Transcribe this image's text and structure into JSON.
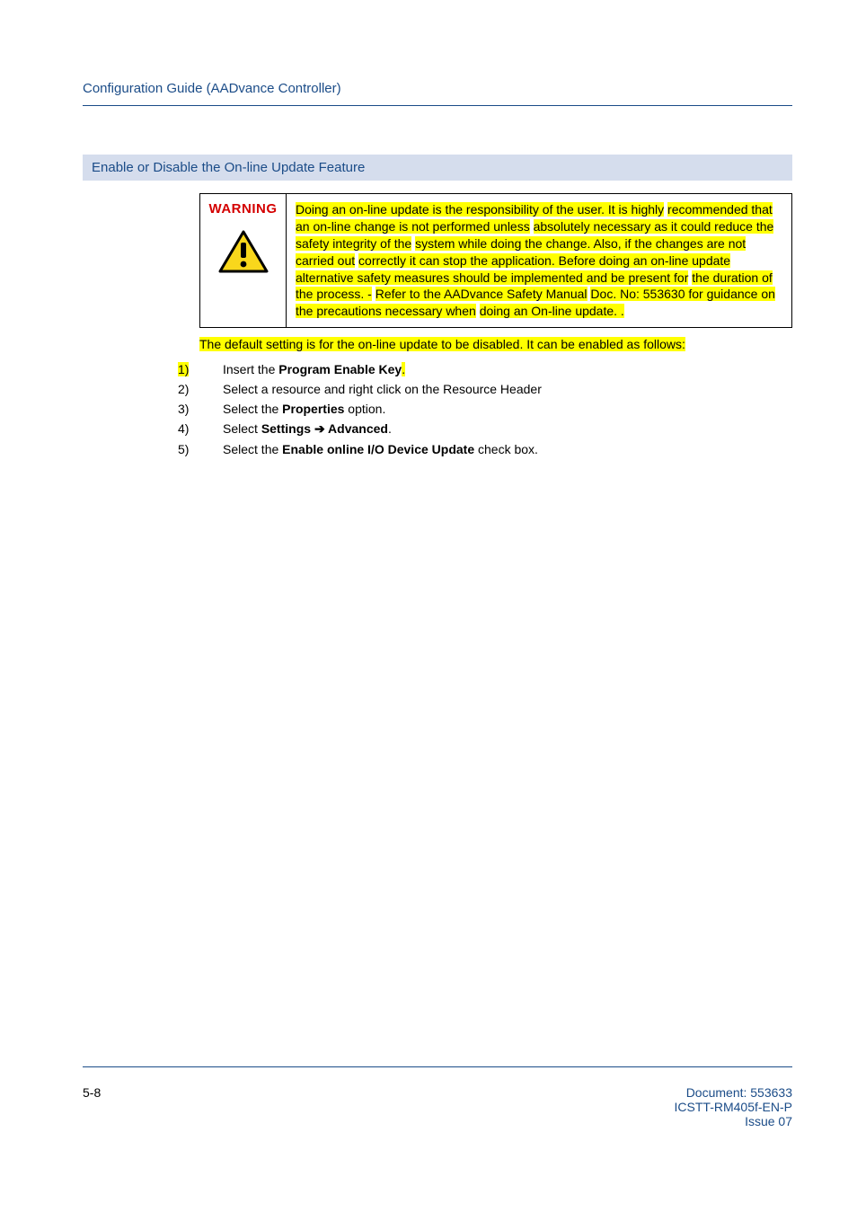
{
  "colors": {
    "brand": "#1b4c88",
    "highlight": "#ffff00",
    "warn_red": "#d40000",
    "band_bg": "#d5dded",
    "tri_fill": "#f9d71c",
    "tri_stroke": "#000000"
  },
  "typography": {
    "body_size_pt": 11,
    "section_size_pt": 11,
    "footer_size_pt": 10,
    "warn_label_size_pt": 11,
    "font_family": "Arial"
  },
  "header": {
    "running": "Configuration Guide (AADvance Controller)"
  },
  "section": {
    "title": "Enable or Disable the On-line Update Feature"
  },
  "warning": {
    "label": "WARNING",
    "body_parts": [
      {
        "t": "Doing an on-line update is the responsibility of the user. It is highly",
        "hl": true
      },
      {
        "t": " ",
        "hl": false
      },
      {
        "t": "recommended that an on-line change is not performed unless",
        "hl": true
      },
      {
        "t": " ",
        "hl": false
      },
      {
        "t": "absolutely necessary as it could reduce the safety integrity of the",
        "hl": true
      },
      {
        "t": " ",
        "hl": false
      },
      {
        "t": "system while doing the change.  Also, if the changes are not carried out",
        "hl": true
      },
      {
        "t": " ",
        "hl": false
      },
      {
        "t": "correctly it can stop the application. Before doing an on-line update",
        "hl": true
      },
      {
        "t": " ",
        "hl": false
      },
      {
        "t": "alternative safety measures should be implemented and be present for",
        "hl": true
      },
      {
        "t": " ",
        "hl": false
      },
      {
        "t": "the duration of the process. -",
        "hl": true
      },
      {
        "t": " ",
        "hl": false
      },
      {
        "t": "Refer to the AADvance Safety Manual",
        "hl": true
      },
      {
        "t": " ",
        "hl": false
      },
      {
        "t": "Doc. No: 553630 for guidance on the precautions necessary when",
        "hl": true
      },
      {
        "t": " ",
        "hl": false
      },
      {
        "t": "doing an On-line update. .",
        "hl": true
      }
    ]
  },
  "default_line": "The default setting is for the on-line update to be disabled. It can be enabled as follows:",
  "steps": [
    {
      "num": "1)",
      "num_hl": true,
      "runs": [
        {
          "t": "Insert the "
        },
        {
          "t": "Program Enable Key",
          "bold": true
        },
        {
          "t": ".",
          "hl": true
        }
      ]
    },
    {
      "num": "2)",
      "runs": [
        {
          "t": "Select a resource and right click on the Resource Header"
        }
      ]
    },
    {
      "num": "3)",
      "runs": [
        {
          "t": "Select the "
        },
        {
          "t": "Properties",
          "bold": true
        },
        {
          "t": " option."
        }
      ]
    },
    {
      "num": "4)",
      "runs": [
        {
          "t": "Select "
        },
        {
          "t": "Settings  ",
          "bold": true
        },
        {
          "t": "➔",
          "bold": true,
          "arrow": true
        },
        {
          "t": "   Advanced",
          "bold": true
        },
        {
          "t": "."
        }
      ]
    },
    {
      "num": "5)",
      "runs": [
        {
          "t": "Select the "
        },
        {
          "t": "Enable online I/O Device Update",
          "bold": true
        },
        {
          "t": " check box."
        }
      ]
    }
  ],
  "footer": {
    "page": "5-8",
    "doc": "Document: 553633",
    "code": "ICSTT-RM405f-EN-P",
    "issue": "Issue 07"
  }
}
